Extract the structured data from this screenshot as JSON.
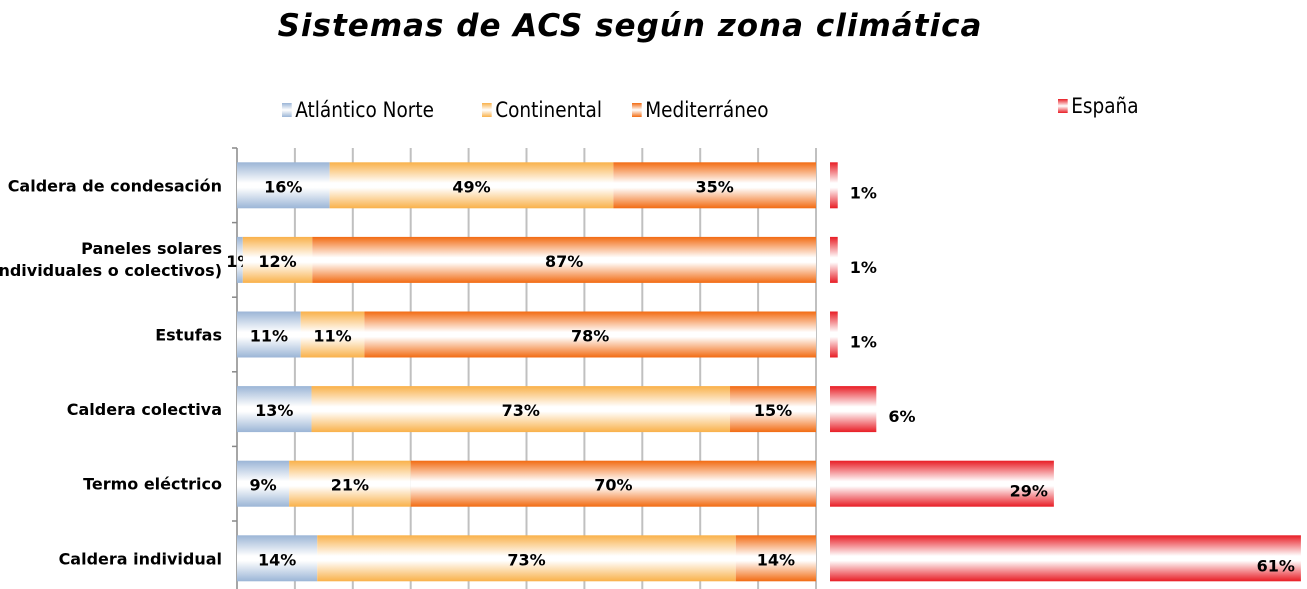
{
  "chart_data": [
    {
      "type": "bar",
      "orientation": "horizontal",
      "stacked": "percent",
      "title": "Sistemas de ACS según zona climática",
      "categories": [
        "Caldera de condesación",
        "Paneles solares (individuales o colectivos)",
        "Estufas",
        "Caldera colectiva",
        "Termo eléctrico",
        "Caldera individual"
      ],
      "series": [
        {
          "name": "Atlántico Norte",
          "color": "#9bb5d6",
          "values": [
            16,
            1,
            11,
            13,
            9,
            14
          ],
          "labels": [
            "16%",
            "1%",
            "11%",
            "13%",
            "9%",
            "14%"
          ]
        },
        {
          "name": "Continental",
          "color": "#f9b14a",
          "values": [
            49,
            12,
            11,
            73,
            21,
            73
          ],
          "labels": [
            "49%",
            "12%",
            "11%",
            "73%",
            "21%",
            "73%"
          ]
        },
        {
          "name": "Mediterráneo",
          "color": "#f26b12",
          "values": [
            35,
            87,
            78,
            15,
            70,
            14
          ],
          "labels": [
            "35%",
            "87%",
            "78%",
            "15%",
            "70%",
            "14%"
          ]
        }
      ],
      "xlim": [
        0,
        100
      ],
      "grid": true,
      "legend": "top"
    },
    {
      "type": "bar",
      "orientation": "horizontal",
      "categories": [
        "Caldera de condesación",
        "Paneles solares (individuales o colectivos)",
        "Estufas",
        "Caldera colectiva",
        "Termo eléctrico",
        "Caldera individual"
      ],
      "series": [
        {
          "name": "España",
          "color": "#e81d25",
          "values": [
            1,
            1,
            1,
            6,
            29,
            61
          ],
          "labels": [
            "1%",
            "1%",
            "1%",
            "6%",
            "29%",
            "61%"
          ]
        }
      ],
      "legend": "top"
    }
  ]
}
